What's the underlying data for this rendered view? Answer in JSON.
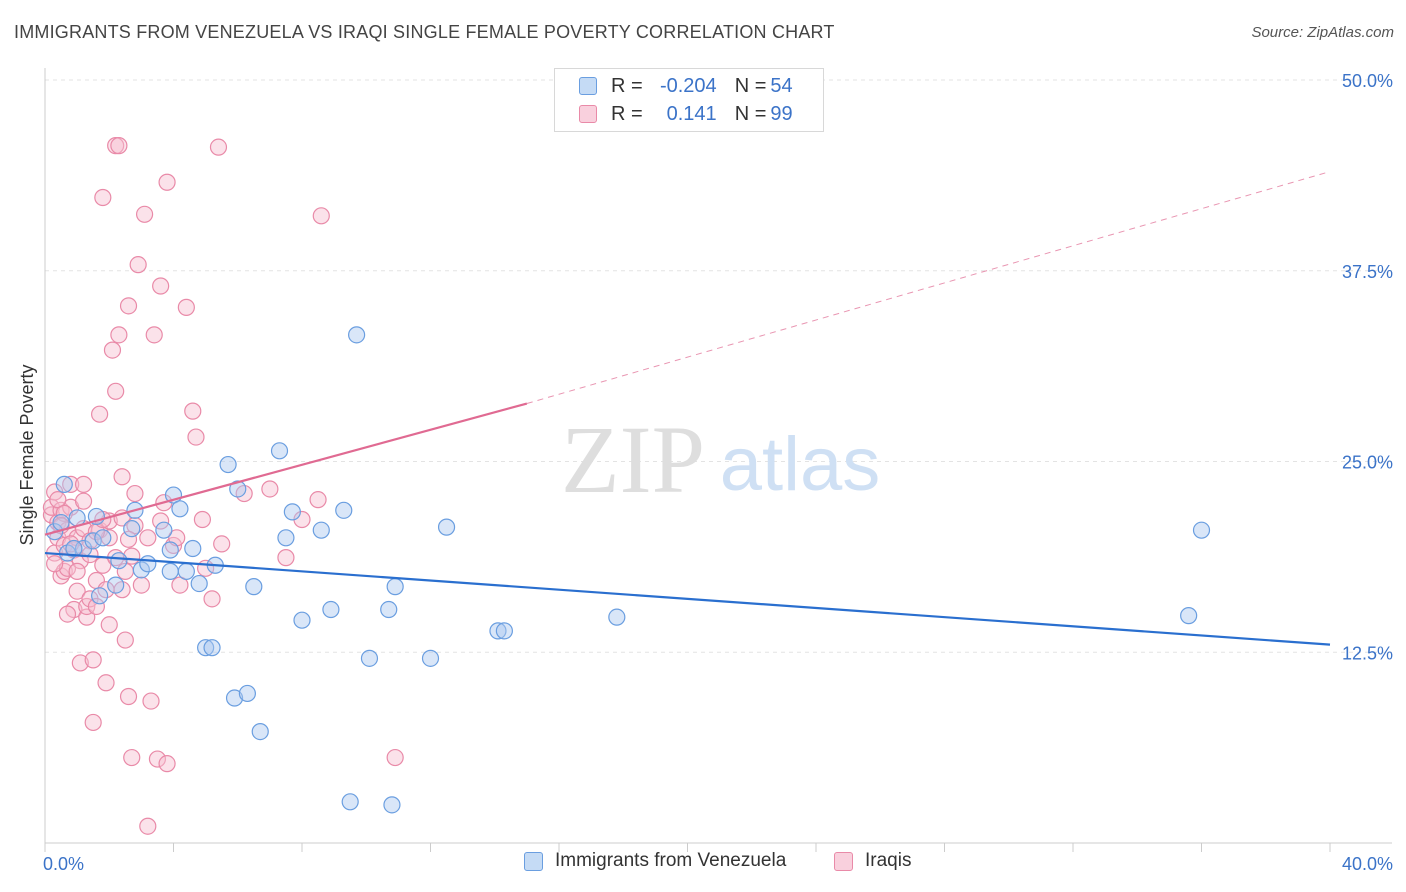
{
  "header": {
    "title": "IMMIGRANTS FROM VENEZUELA VS IRAQI SINGLE FEMALE POVERTY CORRELATION CHART",
    "source": "Source: ZipAtlas.com"
  },
  "watermark": {
    "zip": "ZIP",
    "atlas": "atlas"
  },
  "legend": {
    "series1": {
      "r_label": "R = ",
      "r_value": "-0.204",
      "n_label": "N = ",
      "n_value": "54"
    },
    "series2": {
      "r_label": "R = ",
      "r_value": "0.141",
      "n_label": "N = ",
      "n_value": "99"
    }
  },
  "colors": {
    "blue_fill": "#aac8f0",
    "blue_stroke": "#6a9ee0",
    "blue_line": "#2a6fcf",
    "pink_fill": "#f6bfd0",
    "pink_stroke": "#e98aa8",
    "pink_line": "#e06a92",
    "tick_label": "#3b73c8"
  },
  "chart_data": {
    "type": "scatter",
    "title": "IMMIGRANTS FROM VENEZUELA VS IRAQI SINGLE FEMALE POVERTY CORRELATION CHART",
    "xlabel": "",
    "ylabel": "Single Female Poverty",
    "xlim": [
      0,
      40
    ],
    "ylim": [
      0,
      50
    ],
    "x_tick_labels": [
      "0.0%",
      "40.0%"
    ],
    "y_ticks": [
      12.5,
      25.0,
      37.5,
      50.0
    ],
    "y_tick_labels": [
      "12.5%",
      "25.0%",
      "37.5%",
      "50.0%"
    ],
    "grid": true,
    "legend_position": "bottom",
    "series": [
      {
        "name": "Immigrants from Venezuela",
        "trend": {
          "x0": 0,
          "y0": 19.0,
          "x1": 40,
          "y1": 13.0
        },
        "points": [
          [
            0.3,
            20.4
          ],
          [
            0.5,
            21.0
          ],
          [
            0.6,
            23.5
          ],
          [
            0.7,
            19.0
          ],
          [
            1.0,
            21.3
          ],
          [
            1.2,
            19.3
          ],
          [
            1.5,
            19.8
          ],
          [
            1.6,
            21.4
          ],
          [
            1.7,
            16.2
          ],
          [
            1.8,
            20.0
          ],
          [
            2.3,
            18.5
          ],
          [
            2.7,
            20.6
          ],
          [
            2.8,
            21.8
          ],
          [
            3.0,
            17.9
          ],
          [
            3.2,
            18.3
          ],
          [
            3.7,
            20.5
          ],
          [
            3.9,
            19.2
          ],
          [
            3.9,
            17.8
          ],
          [
            4.0,
            22.8
          ],
          [
            4.2,
            21.9
          ],
          [
            4.4,
            17.8
          ],
          [
            4.6,
            19.3
          ],
          [
            4.8,
            17.0
          ],
          [
            5.0,
            12.8
          ],
          [
            5.3,
            18.2
          ],
          [
            5.7,
            24.8
          ],
          [
            5.9,
            9.5
          ],
          [
            6.0,
            23.2
          ],
          [
            6.3,
            9.8
          ],
          [
            6.5,
            16.8
          ],
          [
            6.7,
            7.3
          ],
          [
            7.3,
            25.7
          ],
          [
            7.5,
            20.0
          ],
          [
            7.7,
            21.7
          ],
          [
            8.0,
            14.6
          ],
          [
            8.6,
            20.5
          ],
          [
            8.9,
            15.3
          ],
          [
            9.3,
            21.8
          ],
          [
            9.5,
            2.7
          ],
          [
            9.7,
            33.3
          ],
          [
            10.1,
            12.1
          ],
          [
            10.7,
            15.3
          ],
          [
            10.8,
            2.5
          ],
          [
            10.9,
            16.8
          ],
          [
            12.0,
            12.1
          ],
          [
            12.5,
            20.7
          ],
          [
            14.1,
            13.9
          ],
          [
            14.3,
            13.9
          ],
          [
            17.8,
            14.8
          ],
          [
            35.6,
            14.9
          ],
          [
            36.0,
            20.5
          ],
          [
            0.9,
            19.3
          ],
          [
            2.2,
            16.9
          ],
          [
            5.2,
            12.8
          ]
        ]
      },
      {
        "name": "Iraqis",
        "trend": {
          "x0": 0,
          "y0": 20.2,
          "x1": 15.0,
          "y1": 28.8,
          "dash_to_x": 40,
          "dash_to_y": 44.0
        },
        "points": [
          [
            0.2,
            21.5
          ],
          [
            0.2,
            22.0
          ],
          [
            0.3,
            23.0
          ],
          [
            0.3,
            19.0
          ],
          [
            0.4,
            20.0
          ],
          [
            0.4,
            21.0
          ],
          [
            0.5,
            21.8
          ],
          [
            0.5,
            17.5
          ],
          [
            0.6,
            19.5
          ],
          [
            0.6,
            17.8
          ],
          [
            0.7,
            20.5
          ],
          [
            0.7,
            18.0
          ],
          [
            0.8,
            22.0
          ],
          [
            0.8,
            23.5
          ],
          [
            0.9,
            19.2
          ],
          [
            0.9,
            15.3
          ],
          [
            1.0,
            20.0
          ],
          [
            1.0,
            16.5
          ],
          [
            1.1,
            18.5
          ],
          [
            1.1,
            11.8
          ],
          [
            1.2,
            23.5
          ],
          [
            1.2,
            20.6
          ],
          [
            1.3,
            14.8
          ],
          [
            1.3,
            15.5
          ],
          [
            1.4,
            19.8
          ],
          [
            1.4,
            16.0
          ],
          [
            1.5,
            12.0
          ],
          [
            1.5,
            7.9
          ],
          [
            1.6,
            17.2
          ],
          [
            1.6,
            15.5
          ],
          [
            1.7,
            28.1
          ],
          [
            1.7,
            20.5
          ],
          [
            1.8,
            42.3
          ],
          [
            1.8,
            18.2
          ],
          [
            1.9,
            10.5
          ],
          [
            1.9,
            16.6
          ],
          [
            2.0,
            20.0
          ],
          [
            2.0,
            21.1
          ],
          [
            2.1,
            32.3
          ],
          [
            2.2,
            29.6
          ],
          [
            2.2,
            45.7
          ],
          [
            2.3,
            45.7
          ],
          [
            2.3,
            33.3
          ],
          [
            2.4,
            24.0
          ],
          [
            2.4,
            21.3
          ],
          [
            2.5,
            17.8
          ],
          [
            2.5,
            13.3
          ],
          [
            2.6,
            35.2
          ],
          [
            2.6,
            9.6
          ],
          [
            2.7,
            18.8
          ],
          [
            2.7,
            5.6
          ],
          [
            2.8,
            22.9
          ],
          [
            2.8,
            20.8
          ],
          [
            2.9,
            37.9
          ],
          [
            3.0,
            16.9
          ],
          [
            3.1,
            41.2
          ],
          [
            3.2,
            20.0
          ],
          [
            3.2,
            1.1
          ],
          [
            3.3,
            9.3
          ],
          [
            3.4,
            33.3
          ],
          [
            3.5,
            5.5
          ],
          [
            3.6,
            21.1
          ],
          [
            3.6,
            36.5
          ],
          [
            3.7,
            22.3
          ],
          [
            3.8,
            43.3
          ],
          [
            3.8,
            5.2
          ],
          [
            4.0,
            19.5
          ],
          [
            4.1,
            20.0
          ],
          [
            4.2,
            16.9
          ],
          [
            4.4,
            35.1
          ],
          [
            4.6,
            28.3
          ],
          [
            4.7,
            26.6
          ],
          [
            4.9,
            21.2
          ],
          [
            5.0,
            18.0
          ],
          [
            5.2,
            16.0
          ],
          [
            5.4,
            45.6
          ],
          [
            5.5,
            19.6
          ],
          [
            6.2,
            22.9
          ],
          [
            7.0,
            23.2
          ],
          [
            7.5,
            18.7
          ],
          [
            8.0,
            21.2
          ],
          [
            8.5,
            22.5
          ],
          [
            8.6,
            41.1
          ],
          [
            10.9,
            5.6
          ],
          [
            0.4,
            22.5
          ],
          [
            0.6,
            21.6
          ],
          [
            0.8,
            19.6
          ],
          [
            1.0,
            17.8
          ],
          [
            1.2,
            22.4
          ],
          [
            1.4,
            18.9
          ],
          [
            1.6,
            20.4
          ],
          [
            1.8,
            21.2
          ],
          [
            2.0,
            14.3
          ],
          [
            2.2,
            18.7
          ],
          [
            2.4,
            16.6
          ],
          [
            2.6,
            19.9
          ],
          [
            0.3,
            18.3
          ],
          [
            0.5,
            20.8
          ],
          [
            0.7,
            15.0
          ]
        ]
      }
    ]
  },
  "bottom_legend": {
    "item1": "Immigrants from Venezuela",
    "item2": "Iraqis"
  }
}
